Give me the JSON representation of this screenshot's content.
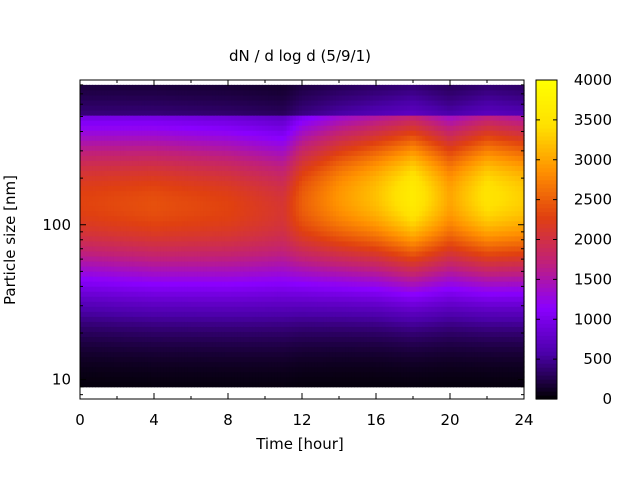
{
  "chart_data": {
    "type": "heatmap",
    "title": "dN / d log d (5/9/1)",
    "xlabel": "Time [hour]",
    "ylabel": "Particle size [nm]",
    "x": {
      "range": [
        0,
        24
      ],
      "ticks": [
        0,
        4,
        8,
        12,
        16,
        20,
        24
      ],
      "tick_labels": [
        "0",
        "4",
        "8",
        "12",
        "16",
        "20",
        "24"
      ]
    },
    "y": {
      "scale": "log",
      "range": [
        7.5,
        860
      ],
      "data_range": [
        9,
        800
      ],
      "ticks": [
        10,
        100
      ],
      "tick_labels": [
        "10",
        "100"
      ]
    },
    "colorbar": {
      "range": [
        0,
        4000
      ],
      "ticks": [
        0,
        500,
        1000,
        1500,
        2000,
        2500,
        3000,
        3500,
        4000
      ],
      "tick_labels": [
        "0",
        "500",
        "1000",
        "1500",
        "2000",
        "2500",
        "3000",
        "3500",
        "4000"
      ],
      "colormap": [
        "#000000",
        "#4b00a8",
        "#8a00ff",
        "#c0207a",
        "#e04010",
        "#ff9000",
        "#ffe000",
        "#ffff00"
      ]
    },
    "values_description_points": {
      "time_hour": [
        0,
        4,
        8,
        11,
        12,
        14,
        16,
        18,
        20,
        22,
        24
      ],
      "peak_diameter_nm": [
        140,
        135,
        130,
        125,
        140,
        150,
        155,
        155,
        150,
        155,
        150
      ],
      "peak_concentration": [
        2300,
        2400,
        2300,
        2100,
        2500,
        2900,
        3200,
        3650,
        3000,
        3500,
        3300
      ]
    }
  }
}
